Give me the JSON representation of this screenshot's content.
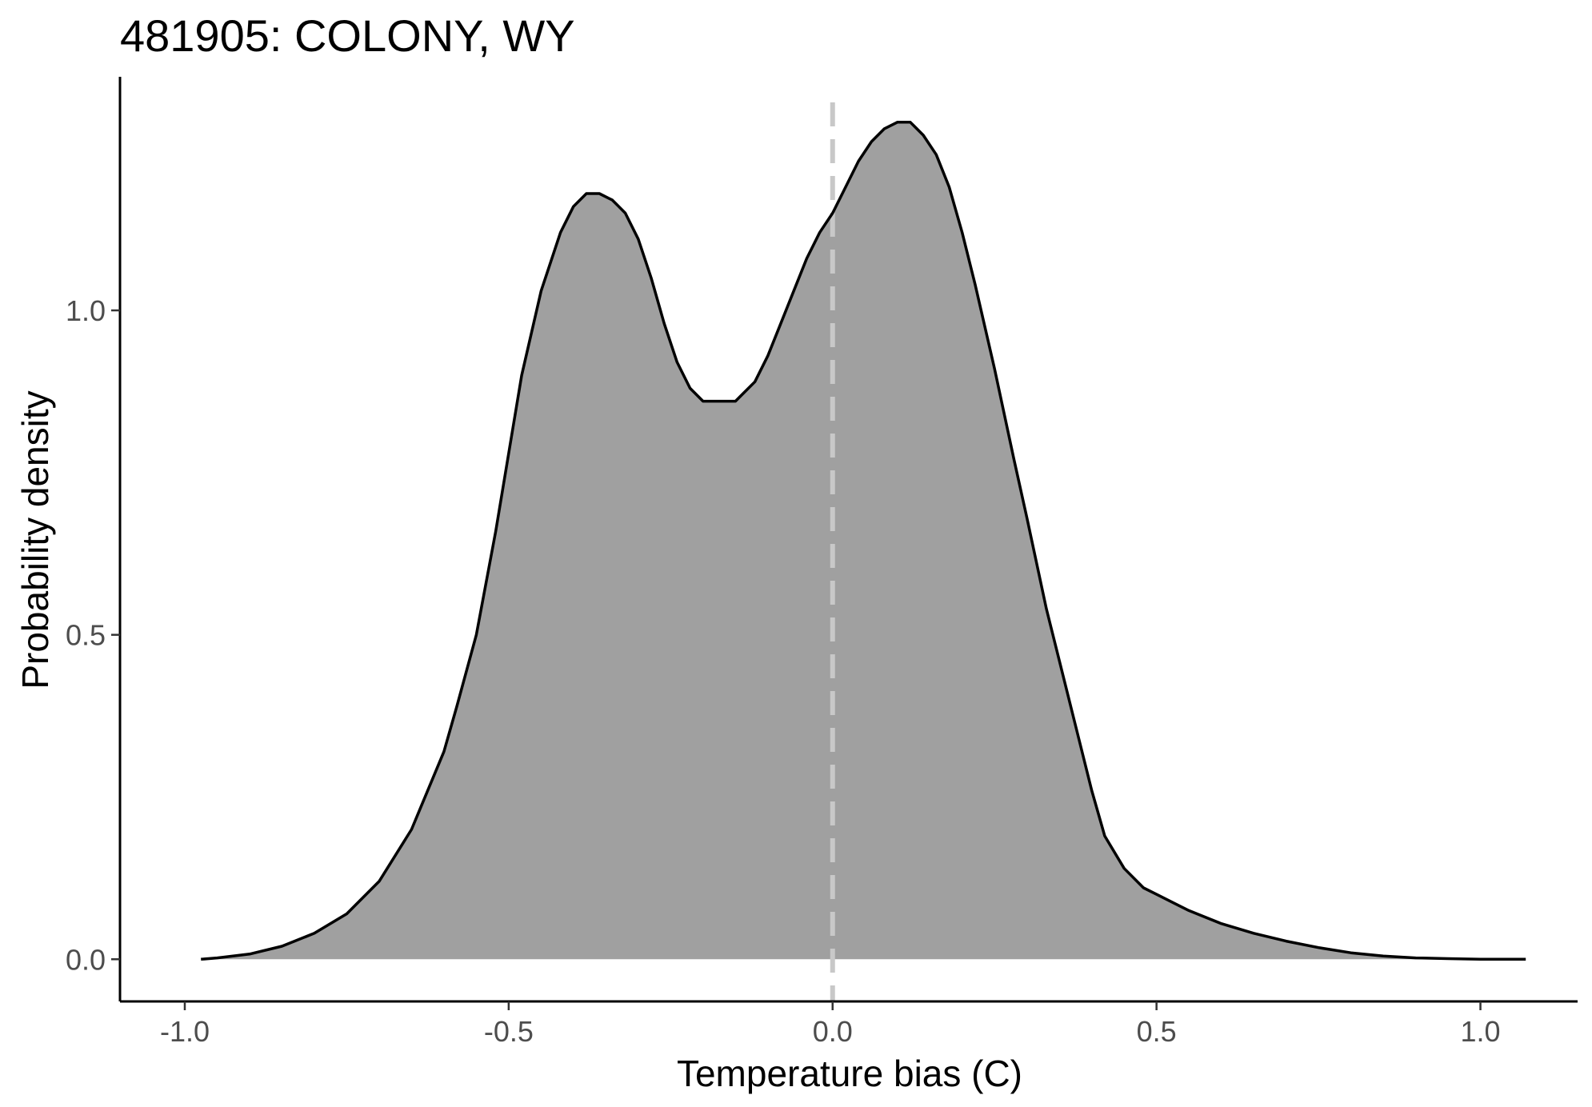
{
  "chart_data": {
    "type": "area",
    "title": "481905: COLONY, WY",
    "xlabel": "Temperature bias (C)",
    "ylabel": "Probability density",
    "xlim": [
      -1.1,
      1.15
    ],
    "ylim": [
      -0.065,
      1.36
    ],
    "x_ticks": [
      -1.0,
      -0.5,
      0.0,
      0.5,
      1.0
    ],
    "x_tick_labels": [
      "-1.0",
      "-0.5",
      "0.0",
      "0.5",
      "1.0"
    ],
    "y_ticks": [
      0.0,
      0.5,
      1.0
    ],
    "y_tick_labels": [
      "0.0",
      "0.5",
      "1.0"
    ],
    "reference_line": {
      "x": 0.0,
      "style": "dashed",
      "color": "#c8c8c8"
    },
    "fill_color": "#a0a0a0",
    "line_color": "#000000",
    "grid": false,
    "legend": "none",
    "series": [
      {
        "x": [
          -0.975,
          -0.95,
          -0.9,
          -0.85,
          -0.8,
          -0.75,
          -0.7,
          -0.65,
          -0.6,
          -0.58,
          -0.55,
          -0.52,
          -0.5,
          -0.48,
          -0.45,
          -0.42,
          -0.4,
          -0.38,
          -0.36,
          -0.34,
          -0.33,
          -0.32,
          -0.3,
          -0.28,
          -0.26,
          -0.24,
          -0.22,
          -0.2,
          -0.18,
          -0.16,
          -0.15,
          -0.14,
          -0.12,
          -0.1,
          -0.08,
          -0.06,
          -0.04,
          -0.02,
          0.0,
          0.02,
          0.04,
          0.06,
          0.08,
          0.1,
          0.11,
          0.12,
          0.14,
          0.16,
          0.18,
          0.2,
          0.22,
          0.25,
          0.28,
          0.3,
          0.33,
          0.35,
          0.38,
          0.4,
          0.42,
          0.45,
          0.48,
          0.5,
          0.53,
          0.55,
          0.6,
          0.65,
          0.7,
          0.75,
          0.8,
          0.85,
          0.9,
          0.95,
          1.0,
          1.05,
          1.07
        ],
        "y": [
          0.0,
          0.002,
          0.008,
          0.02,
          0.04,
          0.07,
          0.12,
          0.2,
          0.32,
          0.39,
          0.5,
          0.66,
          0.78,
          0.9,
          1.03,
          1.12,
          1.16,
          1.18,
          1.18,
          1.17,
          1.16,
          1.15,
          1.11,
          1.05,
          0.98,
          0.92,
          0.88,
          0.86,
          0.86,
          0.86,
          0.86,
          0.87,
          0.89,
          0.93,
          0.98,
          1.03,
          1.08,
          1.12,
          1.15,
          1.19,
          1.23,
          1.26,
          1.28,
          1.29,
          1.29,
          1.29,
          1.27,
          1.24,
          1.19,
          1.12,
          1.04,
          0.91,
          0.77,
          0.68,
          0.54,
          0.46,
          0.34,
          0.26,
          0.19,
          0.14,
          0.11,
          0.1,
          0.085,
          0.075,
          0.055,
          0.04,
          0.028,
          0.018,
          0.01,
          0.005,
          0.002,
          0.001,
          0.0,
          0.0,
          0.0
        ]
      }
    ]
  }
}
